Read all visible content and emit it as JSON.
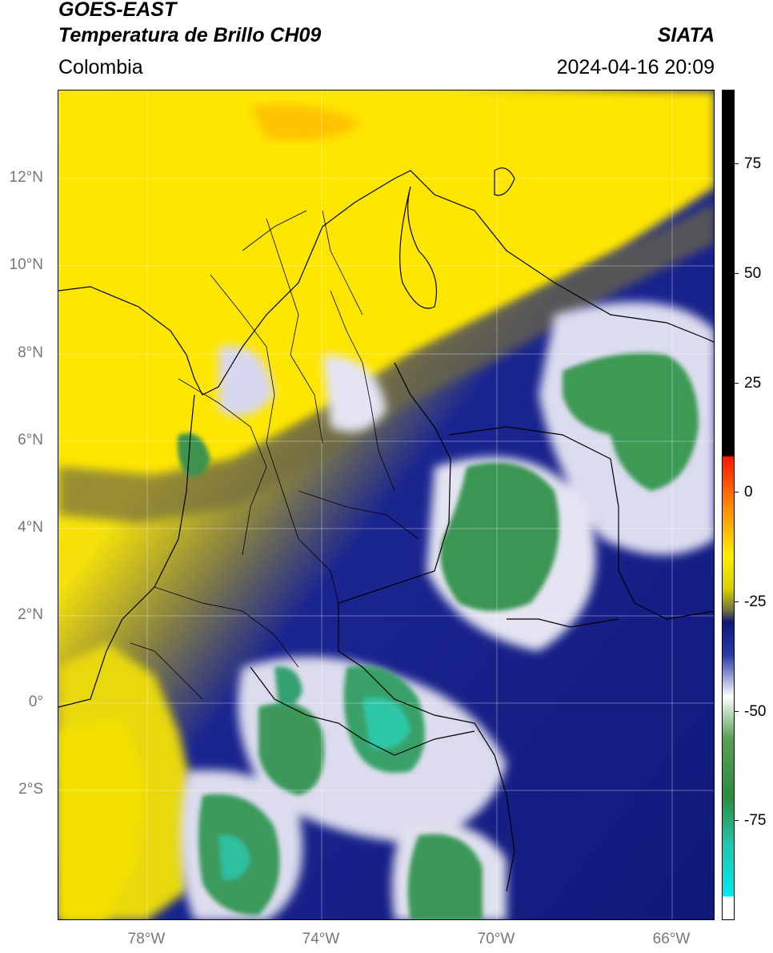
{
  "header": {
    "title_line1": "GOES-EAST",
    "title_line2": "Temperatura de Brillo CH09",
    "source": "SIATA",
    "region": "Colombia",
    "datetime": "2024-04-16 20:09"
  },
  "map": {
    "lat_labels": [
      "12°N",
      "10°N",
      "8°N",
      "6°N",
      "4°N",
      "2°N",
      "0°",
      "2°S"
    ],
    "lon_labels": [
      "78°W",
      "74°W",
      "70°W",
      "66°W"
    ]
  },
  "colorbar": {
    "ticks": [
      "75",
      "50",
      "25",
      "0",
      "-25",
      "-50",
      "-75"
    ],
    "colors": {
      "black": "#000000",
      "red": "#ff2200",
      "orange": "#ff9900",
      "yellow": "#ffee00",
      "olive": "#707040",
      "navy": "#101a80",
      "white": "#ffffff",
      "green": "#2e8b3e",
      "teal": "#20c8b0",
      "cyan": "#00e0e8"
    }
  }
}
